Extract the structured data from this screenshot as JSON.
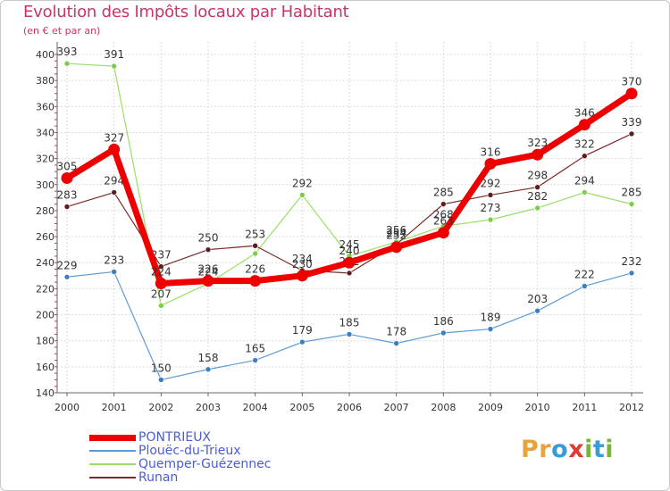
{
  "header": {
    "title": "Evolution des Impôts locaux par Habitant",
    "subtitle": "(en € et par an)"
  },
  "brand": {
    "name": "Proxiti",
    "letters": [
      "P",
      "r",
      "o",
      "x",
      "i",
      "t",
      "i"
    ],
    "colors": [
      "#e8a23a",
      "#e8a23a",
      "#3a9bd5",
      "#e03c31",
      "#79b43c",
      "#3a9bd5",
      "#79b43c"
    ]
  },
  "chart_data": {
    "type": "line",
    "title": "Evolution des Impôts locaux par Habitant",
    "subtitle": "(en € et par an)",
    "xlabel": "",
    "ylabel": "",
    "x": [
      "2000",
      "2001",
      "2002",
      "2003",
      "2004",
      "2005",
      "2006",
      "2007",
      "2008",
      "2009",
      "2010",
      "2011",
      "2012"
    ],
    "ylim": [
      140,
      400
    ],
    "yticks": [
      140,
      160,
      180,
      200,
      220,
      240,
      260,
      280,
      300,
      320,
      340,
      360,
      380,
      400
    ],
    "grid": true,
    "legend_position": "bottom-left",
    "series": [
      {
        "name": "Plouëc-du-Trieux",
        "color": "#5b9bd5",
        "marker": "#3a7fc0",
        "width": 1.2,
        "values": [
          229,
          233,
          150,
          158,
          165,
          179,
          185,
          178,
          186,
          189,
          203,
          222,
          232
        ],
        "labels": [
          "229",
          "233",
          "150",
          "158",
          "165",
          "179",
          "185",
          "178",
          "186",
          "189",
          "203",
          "222",
          "232"
        ]
      },
      {
        "name": "Quemper-Guézennec",
        "color": "#99e066",
        "marker": "#7ccf45",
        "width": 1.2,
        "values": [
          393,
          391,
          207,
          224,
          247,
          292,
          245,
          256,
          268,
          273,
          282,
          294,
          285
        ],
        "labels": [
          "393",
          "391",
          "207",
          "224",
          "",
          "292",
          "245",
          "256",
          "268",
          "273",
          "282",
          "294",
          "285"
        ]
      },
      {
        "name": "Runan",
        "color": "#7a2a2a",
        "marker": "#5e1d1d",
        "width": 1.2,
        "values": [
          283,
          294,
          237,
          250,
          253,
          234,
          232,
          254,
          285,
          292,
          298,
          322,
          339
        ],
        "labels": [
          "283",
          "294",
          "237",
          "250",
          "253",
          "234",
          "232",
          "254",
          "285",
          "292",
          "298",
          "322",
          "339"
        ]
      },
      {
        "name": "PONTRIEUX",
        "color": "#ee0000",
        "marker": "#ee0000",
        "width": 7,
        "values": [
          305,
          327,
          224,
          226,
          226,
          230,
          240,
          252,
          263,
          316,
          323,
          346,
          370
        ],
        "labels": [
          "305",
          "327",
          "224",
          "226",
          "226",
          "230",
          "240",
          "252",
          "263",
          "316",
          "323",
          "346",
          "370"
        ]
      }
    ],
    "legend": [
      {
        "name": "PONTRIEUX",
        "color": "#ee0000",
        "width": 7
      },
      {
        "name": "Plouëc-du-Trieux",
        "color": "#5b9bd5",
        "width": 1.5
      },
      {
        "name": "Quemper-Guézennec",
        "color": "#99e066",
        "width": 1.5
      },
      {
        "name": "Runan",
        "color": "#7a2a2a",
        "width": 1.5
      }
    ]
  }
}
